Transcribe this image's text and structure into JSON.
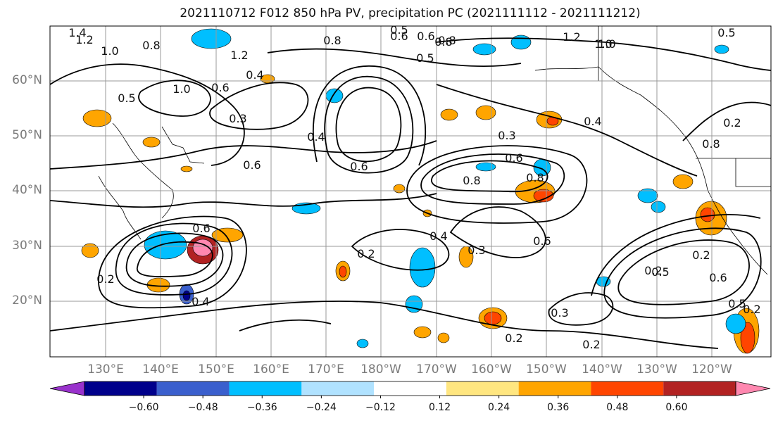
{
  "title": "2021110712 F012 850 hPa PV, precipitation PC (2021111112 - 2021111212)",
  "map": {
    "lat_labels": [
      "60°N",
      "50°N",
      "40°N",
      "30°N",
      "20°N"
    ],
    "lon_labels": [
      "130°E",
      "140°E",
      "150°E",
      "160°E",
      "170°E",
      "180°W",
      "170°W",
      "160°W",
      "150°W",
      "140°W",
      "130°W",
      "120°W"
    ],
    "contour_labels": [
      "1.4",
      "1.2",
      "1.0",
      "0.8",
      "1.2",
      "0.4",
      "0.5",
      "0.8",
      "1.0",
      "0.6",
      "0.3",
      "0.5",
      "0.6",
      "0.8",
      "0.5",
      "0.6",
      "0.8",
      "1.0",
      "0.5",
      "0.4",
      "0.6",
      "0.3",
      "0.4",
      "0.6",
      "0.8",
      "0.6",
      "0.5",
      "0.8",
      "0.6",
      "0.2",
      "0.4",
      "0.3",
      "0.6",
      "0.2",
      "0.4",
      "0.3",
      "0.2",
      "0.2",
      "0.2",
      "0.5",
      "0.6",
      "0.2",
      "0.8",
      "0.2",
      "1.2",
      "1.0",
      "0.2"
    ]
  },
  "colorbar": {
    "ticks": [
      "−0.60",
      "−0.48",
      "−0.36",
      "−0.24",
      "−0.12",
      "0.12",
      "0.24",
      "0.36",
      "0.48",
      "0.60"
    ],
    "colors": [
      "#9932cc",
      "#00008b",
      "#3a5fcd",
      "#00bfff",
      "#b0e2ff",
      "#ffffff",
      "#ffe680",
      "#ffa500",
      "#ff4500",
      "#b22222",
      "#ff88b0"
    ]
  },
  "legend_colors": {
    "neg_fill_light": "#00bfff",
    "pos_fill": "#ffa500",
    "pos_strong": "#ff4500",
    "contour": "#000000"
  }
}
